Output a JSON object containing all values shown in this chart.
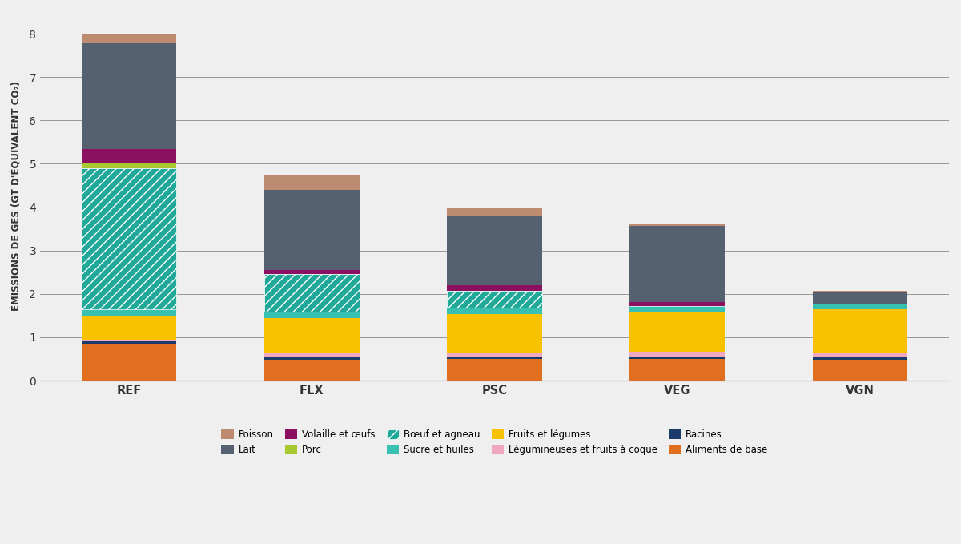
{
  "categories": [
    "REF",
    "FLX",
    "PSC",
    "VEG",
    "VGN"
  ],
  "segments": [
    {
      "label": "Aliments de base",
      "color": "#E07020",
      "hatch": null,
      "values": [
        0.85,
        0.48,
        0.5,
        0.5,
        0.48
      ]
    },
    {
      "label": "Racines",
      "color": "#1a3a6a",
      "hatch": null,
      "values": [
        0.05,
        0.05,
        0.05,
        0.05,
        0.05
      ]
    },
    {
      "label": "Légumineuses et fruits à coque",
      "color": "#f0a8c0",
      "hatch": null,
      "values": [
        0.05,
        0.1,
        0.1,
        0.12,
        0.12
      ]
    },
    {
      "label": "Fruits et légumes",
      "color": "#F8C200",
      "hatch": null,
      "values": [
        0.55,
        0.82,
        0.88,
        0.9,
        1.0
      ]
    },
    {
      "label": "Sucre et huiles",
      "color": "#38C0B0",
      "hatch": null,
      "values": [
        0.15,
        0.15,
        0.15,
        0.15,
        0.12
      ]
    },
    {
      "label": "Bœuf et agneau",
      "color": "#20A898",
      "hatch": "///",
      "values": [
        3.25,
        0.85,
        0.4,
        0.0,
        0.0
      ]
    },
    {
      "label": "Porc",
      "color": "#A8C830",
      "hatch": null,
      "values": [
        0.12,
        0.0,
        0.0,
        0.0,
        0.0
      ]
    },
    {
      "label": "Volaille et œufs",
      "color": "#8B1060",
      "hatch": null,
      "values": [
        0.33,
        0.1,
        0.12,
        0.1,
        0.0
      ]
    },
    {
      "label": "Lait",
      "color": "#556070",
      "hatch": null,
      "values": [
        2.43,
        1.85,
        1.6,
        1.75,
        0.28
      ]
    },
    {
      "label": "Poisson",
      "color": "#BC8B70",
      "hatch": null,
      "values": [
        0.22,
        0.35,
        0.2,
        0.03,
        0.03
      ]
    }
  ],
  "ylabel": "ÉMISSIONS DE GES (GT D'ÉQUIVALENT CO₂)",
  "ylim": [
    0,
    8.5
  ],
  "yticks": [
    0,
    1,
    2,
    3,
    4,
    5,
    6,
    7,
    8
  ],
  "background_color": "#efefef",
  "bar_width": 0.52,
  "legend_row1": [
    "Poisson",
    "Lait",
    "Volaille et œufs",
    "Porc",
    "Bœuf et agneau"
  ],
  "legend_row2": [
    "Sucre et huiles",
    "Fruits et légumes",
    "Légumineuses et fruits à coque",
    "Racines",
    "Aliments de base"
  ]
}
